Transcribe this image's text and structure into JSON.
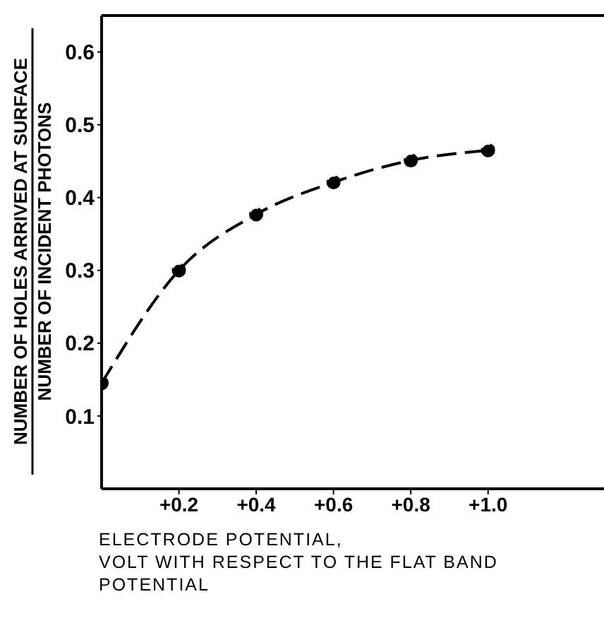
{
  "chart_data": {
    "type": "line",
    "xlabel": "ELECTRODE POTENTIAL,\nVOLT WITH RESPECT TO THE FLAT BAND\nPOTENTIAL",
    "ylabel": "NUMBER OF HOLES ARRIVED AT SURFACE\nNUMBER OF INCIDENT PHOTONS",
    "x": [
      0,
      0.2,
      0.4,
      0.6,
      0.8,
      1.0
    ],
    "series": [
      {
        "color": "#000000",
        "values": [
          0.145,
          0.3,
          0.377,
          0.421,
          0.451,
          0.465
        ]
      }
    ],
    "xlim": [
      0,
      1.3
    ],
    "xticks": [
      {
        "value": 0.2,
        "label": "+0.2"
      },
      {
        "value": 0.4,
        "label": "+0.4"
      },
      {
        "value": 0.6,
        "label": "+0.6"
      },
      {
        "value": 0.8,
        "label": "+0.8"
      },
      {
        "value": 1.0,
        "label": "+1.0"
      }
    ],
    "ylim": [
      0,
      0.65
    ],
    "yticks": [
      0.1,
      0.2,
      0.3,
      0.4,
      0.5,
      0.6
    ],
    "marker": "circle",
    "line_style": "dashed",
    "grid": false,
    "legend": false
  }
}
